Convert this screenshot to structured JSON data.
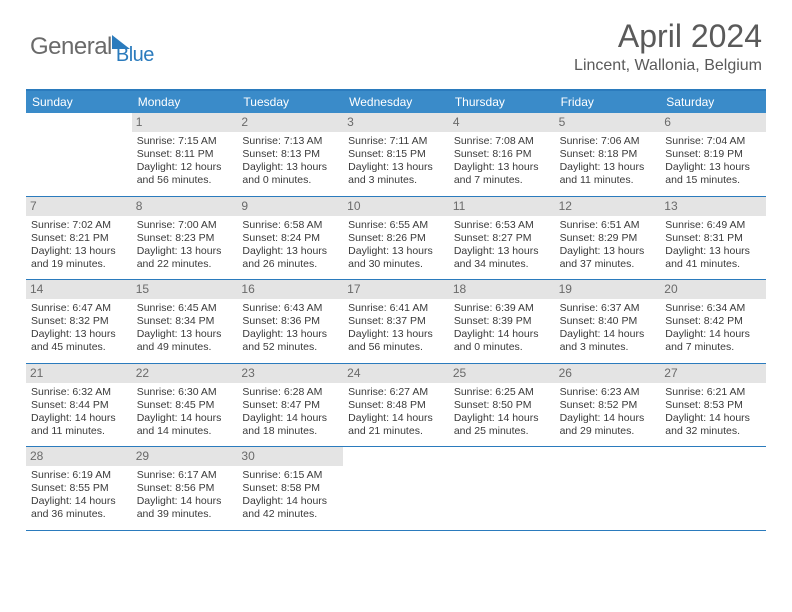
{
  "logo": {
    "text1": "General",
    "text2": "Blue"
  },
  "title": "April 2024",
  "location": "Lincent, Wallonia, Belgium",
  "colors": {
    "header_bg": "#3a8bc9",
    "border": "#2b7bbd",
    "daynum_bg": "#e4e4e4",
    "text": "#3a3a3a",
    "muted": "#6a6a6a"
  },
  "dayNames": [
    "Sunday",
    "Monday",
    "Tuesday",
    "Wednesday",
    "Thursday",
    "Friday",
    "Saturday"
  ],
  "weeks": [
    [
      {
        "day": "",
        "lines": []
      },
      {
        "day": "1",
        "lines": [
          "Sunrise: 7:15 AM",
          "Sunset: 8:11 PM",
          "Daylight: 12 hours",
          "and 56 minutes."
        ]
      },
      {
        "day": "2",
        "lines": [
          "Sunrise: 7:13 AM",
          "Sunset: 8:13 PM",
          "Daylight: 13 hours",
          "and 0 minutes."
        ]
      },
      {
        "day": "3",
        "lines": [
          "Sunrise: 7:11 AM",
          "Sunset: 8:15 PM",
          "Daylight: 13 hours",
          "and 3 minutes."
        ]
      },
      {
        "day": "4",
        "lines": [
          "Sunrise: 7:08 AM",
          "Sunset: 8:16 PM",
          "Daylight: 13 hours",
          "and 7 minutes."
        ]
      },
      {
        "day": "5",
        "lines": [
          "Sunrise: 7:06 AM",
          "Sunset: 8:18 PM",
          "Daylight: 13 hours",
          "and 11 minutes."
        ]
      },
      {
        "day": "6",
        "lines": [
          "Sunrise: 7:04 AM",
          "Sunset: 8:19 PM",
          "Daylight: 13 hours",
          "and 15 minutes."
        ]
      }
    ],
    [
      {
        "day": "7",
        "lines": [
          "Sunrise: 7:02 AM",
          "Sunset: 8:21 PM",
          "Daylight: 13 hours",
          "and 19 minutes."
        ]
      },
      {
        "day": "8",
        "lines": [
          "Sunrise: 7:00 AM",
          "Sunset: 8:23 PM",
          "Daylight: 13 hours",
          "and 22 minutes."
        ]
      },
      {
        "day": "9",
        "lines": [
          "Sunrise: 6:58 AM",
          "Sunset: 8:24 PM",
          "Daylight: 13 hours",
          "and 26 minutes."
        ]
      },
      {
        "day": "10",
        "lines": [
          "Sunrise: 6:55 AM",
          "Sunset: 8:26 PM",
          "Daylight: 13 hours",
          "and 30 minutes."
        ]
      },
      {
        "day": "11",
        "lines": [
          "Sunrise: 6:53 AM",
          "Sunset: 8:27 PM",
          "Daylight: 13 hours",
          "and 34 minutes."
        ]
      },
      {
        "day": "12",
        "lines": [
          "Sunrise: 6:51 AM",
          "Sunset: 8:29 PM",
          "Daylight: 13 hours",
          "and 37 minutes."
        ]
      },
      {
        "day": "13",
        "lines": [
          "Sunrise: 6:49 AM",
          "Sunset: 8:31 PM",
          "Daylight: 13 hours",
          "and 41 minutes."
        ]
      }
    ],
    [
      {
        "day": "14",
        "lines": [
          "Sunrise: 6:47 AM",
          "Sunset: 8:32 PM",
          "Daylight: 13 hours",
          "and 45 minutes."
        ]
      },
      {
        "day": "15",
        "lines": [
          "Sunrise: 6:45 AM",
          "Sunset: 8:34 PM",
          "Daylight: 13 hours",
          "and 49 minutes."
        ]
      },
      {
        "day": "16",
        "lines": [
          "Sunrise: 6:43 AM",
          "Sunset: 8:36 PM",
          "Daylight: 13 hours",
          "and 52 minutes."
        ]
      },
      {
        "day": "17",
        "lines": [
          "Sunrise: 6:41 AM",
          "Sunset: 8:37 PM",
          "Daylight: 13 hours",
          "and 56 minutes."
        ]
      },
      {
        "day": "18",
        "lines": [
          "Sunrise: 6:39 AM",
          "Sunset: 8:39 PM",
          "Daylight: 14 hours",
          "and 0 minutes."
        ]
      },
      {
        "day": "19",
        "lines": [
          "Sunrise: 6:37 AM",
          "Sunset: 8:40 PM",
          "Daylight: 14 hours",
          "and 3 minutes."
        ]
      },
      {
        "day": "20",
        "lines": [
          "Sunrise: 6:34 AM",
          "Sunset: 8:42 PM",
          "Daylight: 14 hours",
          "and 7 minutes."
        ]
      }
    ],
    [
      {
        "day": "21",
        "lines": [
          "Sunrise: 6:32 AM",
          "Sunset: 8:44 PM",
          "Daylight: 14 hours",
          "and 11 minutes."
        ]
      },
      {
        "day": "22",
        "lines": [
          "Sunrise: 6:30 AM",
          "Sunset: 8:45 PM",
          "Daylight: 14 hours",
          "and 14 minutes."
        ]
      },
      {
        "day": "23",
        "lines": [
          "Sunrise: 6:28 AM",
          "Sunset: 8:47 PM",
          "Daylight: 14 hours",
          "and 18 minutes."
        ]
      },
      {
        "day": "24",
        "lines": [
          "Sunrise: 6:27 AM",
          "Sunset: 8:48 PM",
          "Daylight: 14 hours",
          "and 21 minutes."
        ]
      },
      {
        "day": "25",
        "lines": [
          "Sunrise: 6:25 AM",
          "Sunset: 8:50 PM",
          "Daylight: 14 hours",
          "and 25 minutes."
        ]
      },
      {
        "day": "26",
        "lines": [
          "Sunrise: 6:23 AM",
          "Sunset: 8:52 PM",
          "Daylight: 14 hours",
          "and 29 minutes."
        ]
      },
      {
        "day": "27",
        "lines": [
          "Sunrise: 6:21 AM",
          "Sunset: 8:53 PM",
          "Daylight: 14 hours",
          "and 32 minutes."
        ]
      }
    ],
    [
      {
        "day": "28",
        "lines": [
          "Sunrise: 6:19 AM",
          "Sunset: 8:55 PM",
          "Daylight: 14 hours",
          "and 36 minutes."
        ]
      },
      {
        "day": "29",
        "lines": [
          "Sunrise: 6:17 AM",
          "Sunset: 8:56 PM",
          "Daylight: 14 hours",
          "and 39 minutes."
        ]
      },
      {
        "day": "30",
        "lines": [
          "Sunrise: 6:15 AM",
          "Sunset: 8:58 PM",
          "Daylight: 14 hours",
          "and 42 minutes."
        ]
      },
      {
        "day": "",
        "lines": []
      },
      {
        "day": "",
        "lines": []
      },
      {
        "day": "",
        "lines": []
      },
      {
        "day": "",
        "lines": []
      }
    ]
  ]
}
